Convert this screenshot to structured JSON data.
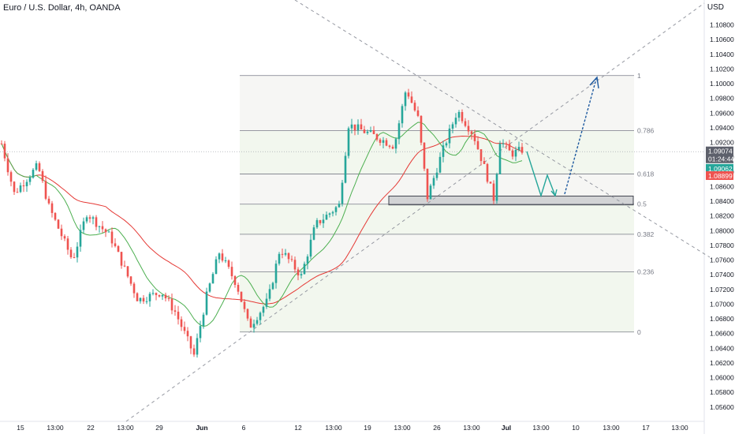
{
  "header": {
    "title": "Euro / U.S. Dollar, 4h, OANDA",
    "currency": "USD"
  },
  "price_tags": {
    "last": "1.09074",
    "countdown": "01:24:44",
    "green": "1.09062",
    "red": "1.08899"
  },
  "colors": {
    "bull": "#26a69a",
    "bear": "#ef5350",
    "ma_fast": "#4caf50",
    "ma_slow": "#e53935",
    "fib_line": "#787b86",
    "arrow_teal": "#26a69a",
    "arrow_blue": "#1e5aa0"
  },
  "chart_data": {
    "type": "candlestick",
    "symbol": "EUR/USD",
    "timeframe": "4h",
    "ylim": [
      1.0555,
      1.1135
    ],
    "y_ticks": [
      "1.10800",
      "1.10600",
      "1.10400",
      "1.10200",
      "1.10000",
      "1.09800",
      "1.09600",
      "1.09400",
      "1.09200",
      "1.09000",
      "1.08800",
      "1.08600",
      "1.08400",
      "1.08200",
      "1.08000",
      "1.07800",
      "1.07600",
      "1.07400",
      "1.07200",
      "1.07000",
      "1.06800",
      "1.06600",
      "1.06400",
      "1.06200",
      "1.06000",
      "1.05800",
      "1.05600"
    ],
    "x_ticks": [
      "15",
      "13:00",
      "22",
      "13:00",
      "29",
      "Jun",
      "6",
      "12",
      "13:00",
      "19",
      "13:00",
      "26",
      "13:00",
      "Jul",
      "13:00",
      "10",
      "13:00",
      "17",
      "13:00"
    ],
    "fib_levels": [
      {
        "label": "1",
        "price": 1.1011
      },
      {
        "label": "0.786",
        "price": 1.0936
      },
      {
        "label": "0.618",
        "price": 1.0877
      },
      {
        "label": "0.5",
        "price": 1.0836
      },
      {
        "label": "0.382",
        "price": 1.0795
      },
      {
        "label": "0.236",
        "price": 1.0744
      },
      {
        "label": "0",
        "price": 1.0662
      }
    ],
    "support_zone": [
      1.0835,
      1.0847
    ],
    "last_price": 1.09074,
    "ma_fast_value": 1.09062,
    "ma_slow_value": 1.08899
  }
}
